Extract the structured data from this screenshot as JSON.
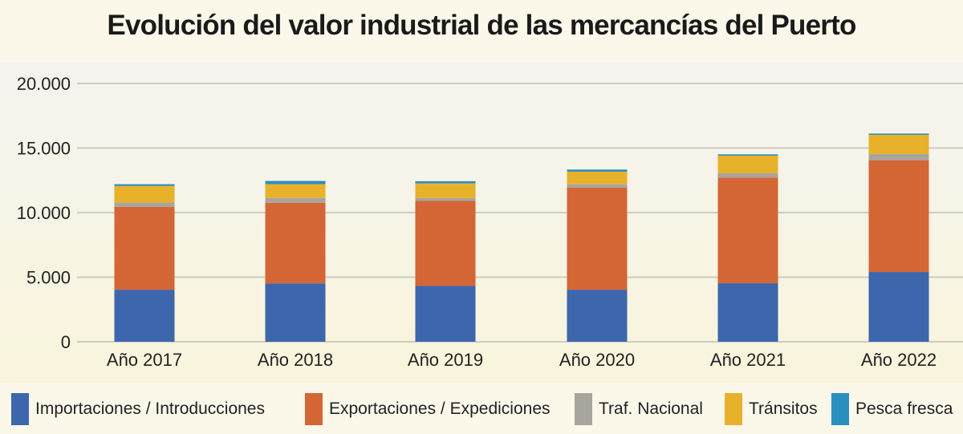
{
  "chart_data": {
    "type": "bar",
    "stacked": true,
    "title": "Evolución del valor industrial de las mercancías del Puerto",
    "xlabel": "",
    "ylabel": "",
    "ylim": [
      0,
      20000
    ],
    "yticks": [
      0,
      5000,
      10000,
      15000,
      20000
    ],
    "ytick_labels": [
      "0",
      "5.000",
      "10.000",
      "15.000",
      "20.000"
    ],
    "grid": true,
    "legend_position": "bottom",
    "categories": [
      "Año 2017",
      "Año 2018",
      "Año 2019",
      "Año 2020",
      "Año 2021",
      "Año 2022"
    ],
    "series": [
      {
        "name": "Importaciones / Introducciones",
        "color": "#3d66ad",
        "values": [
          4030,
          4520,
          4320,
          4030,
          4530,
          5400
        ]
      },
      {
        "name": "Exportaciones / Expediciones",
        "color": "#d46635",
        "values": [
          6420,
          6240,
          6580,
          7900,
          8180,
          8640
        ]
      },
      {
        "name": "Traf. Nacional",
        "color": "#a8a49e",
        "values": [
          330,
          370,
          230,
          260,
          330,
          490
        ]
      },
      {
        "name": "Tránsitos",
        "color": "#e8b12a",
        "values": [
          1280,
          1070,
          1130,
          980,
          1370,
          1490
        ]
      },
      {
        "name": "Pesca fresca",
        "color": "#2b8fc0",
        "values": [
          140,
          250,
          170,
          160,
          100,
          100
        ]
      }
    ]
  }
}
